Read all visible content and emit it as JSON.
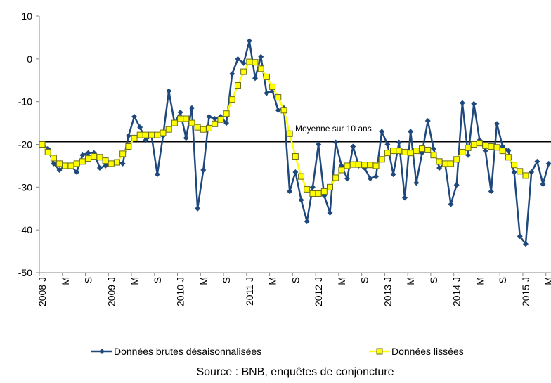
{
  "chart_data": {
    "type": "line",
    "categories": [
      "2008 J",
      null,
      null,
      null,
      "M",
      null,
      null,
      null,
      "S",
      null,
      null,
      null,
      "2009 J",
      null,
      null,
      null,
      "M",
      null,
      null,
      null,
      "S",
      null,
      null,
      null,
      "2010 J",
      null,
      null,
      null,
      "M",
      null,
      null,
      null,
      "S",
      null,
      null,
      null,
      "2011 J",
      null,
      null,
      null,
      "M",
      null,
      null,
      null,
      "S",
      null,
      null,
      null,
      "2012 J",
      null,
      null,
      null,
      "M",
      null,
      null,
      null,
      "S",
      null,
      null,
      null,
      "2013 J",
      null,
      null,
      null,
      "M",
      null,
      null,
      null,
      "S",
      null,
      null,
      null,
      "2014 J",
      null,
      null,
      null,
      "M",
      null,
      null,
      null,
      "S",
      null,
      null,
      null,
      "2015 J",
      null,
      null,
      null,
      "M"
    ],
    "series": [
      {
        "name": "Données brutes désaisonnalisées",
        "color": "#1f497d",
        "marker": "diamond",
        "values": [
          -20,
          -21,
          -24.5,
          -26,
          -25,
          -25,
          -26.5,
          -22.5,
          -22,
          -22,
          -25.5,
          -25,
          -24.5,
          -24,
          -24.5,
          -18,
          -13.5,
          -16,
          -19,
          -18,
          -27,
          -18,
          -7.5,
          -15,
          -12.5,
          -18.5,
          -11.5,
          -35,
          -26,
          -13.5,
          -14,
          -13.5,
          -15,
          -3.5,
          0,
          -1,
          4.2,
          -4.5,
          0.5,
          -8,
          -7.5,
          -12,
          -11.5,
          -31,
          -26.5,
          -33,
          -38,
          -30,
          -20,
          -32,
          -36,
          -19.5,
          -25,
          -28,
          -20.5,
          -25,
          -25.5,
          -28,
          -27.5,
          -17,
          -20,
          -27,
          -19.5,
          -32.5,
          -17,
          -29,
          -22,
          -14.5,
          -21,
          -25.5,
          -24.5,
          -34,
          -29.5,
          -10.3,
          -22.5,
          -10.5,
          -19,
          -21.5,
          -31,
          -15.2,
          -20.5,
          -21.5,
          -26.5,
          -41.5,
          -43.3,
          -26.5,
          -24,
          -29.3,
          -24.5
        ]
      },
      {
        "name": "Données lissées",
        "color": "#ffff00",
        "marker": "square",
        "values": [
          -20,
          -21.8,
          -23.2,
          -24.5,
          -25,
          -25,
          -24.5,
          -24,
          -23.3,
          -22.8,
          -23,
          -23.8,
          -24.5,
          -24.2,
          -22.2,
          -20.5,
          -18.5,
          -17.8,
          -17.8,
          -17.8,
          -17.8,
          -17.3,
          -16.5,
          -15,
          -14,
          -14,
          -15,
          -16,
          -16.5,
          -16.2,
          -15.2,
          -14.2,
          -12.8,
          -9.5,
          -6.2,
          -3,
          -0.7,
          -0.8,
          -2.3,
          -4.2,
          -6.5,
          -9,
          -12,
          -17.5,
          -22.8,
          -27.5,
          -30.5,
          -31.5,
          -31.5,
          -31,
          -30,
          -27.8,
          -26,
          -25,
          -24.7,
          -24.7,
          -24.8,
          -24.8,
          -25,
          -23.5,
          -22,
          -21.5,
          -21.5,
          -21.8,
          -22,
          -21.5,
          -21,
          -21.3,
          -22.5,
          -24,
          -24.5,
          -24.5,
          -23.5,
          -21.8,
          -20.8,
          -20,
          -19.7,
          -20.3,
          -20.5,
          -20.7,
          -21.5,
          -23,
          -24.8,
          -26.3,
          -27.3,
          null,
          null,
          null,
          null
        ]
      }
    ],
    "reference_line": {
      "value": -19.3,
      "label": "Moyenne sur 10 ans"
    },
    "ylim": [
      -50,
      10
    ],
    "yticks": [
      -50,
      -40,
      -30,
      -20,
      -10,
      0,
      10
    ],
    "source": "Source : BNB, enquêtes de conjoncture",
    "legend": "bottom"
  }
}
